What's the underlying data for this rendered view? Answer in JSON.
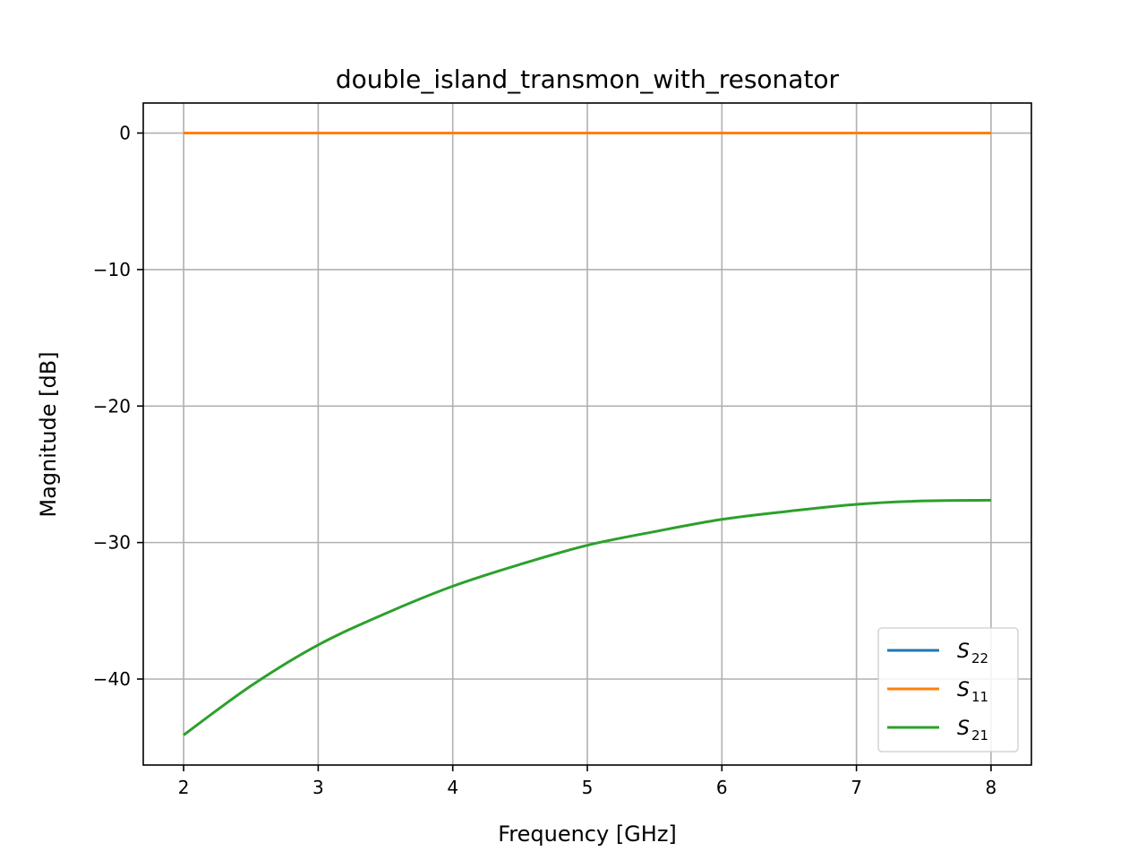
{
  "chart_data": {
    "type": "line",
    "title": "double_island_transmon_with_resonator",
    "xlabel": "Frequency [GHz]",
    "ylabel": "Magnitude [dB]",
    "xlim": [
      1.7,
      8.3
    ],
    "ylim": [
      -46.3,
      2.2
    ],
    "x_ticks": [
      2,
      3,
      4,
      5,
      6,
      7,
      8
    ],
    "x_tick_labels": [
      "2",
      "3",
      "4",
      "5",
      "6",
      "7",
      "8"
    ],
    "y_ticks": [
      0,
      -10,
      -20,
      -30,
      -40
    ],
    "y_tick_labels": [
      "0",
      "−10",
      "−20",
      "−30",
      "−40"
    ],
    "grid": true,
    "legend_position": "lower-right",
    "x": [
      2.0,
      2.5,
      3.0,
      3.5,
      4.0,
      4.5,
      5.0,
      5.5,
      6.0,
      6.5,
      7.0,
      7.5,
      8.0
    ],
    "series": [
      {
        "name": "S22",
        "label_base": "S",
        "label_sub": "22",
        "color": "#1f77b4",
        "values": [
          0,
          0,
          0,
          0,
          0,
          0,
          0,
          0,
          0,
          0,
          0,
          0,
          0
        ]
      },
      {
        "name": "S11",
        "label_base": "S",
        "label_sub": "11",
        "color": "#ff7f0e",
        "values": [
          0,
          0,
          0,
          0,
          0,
          0,
          0,
          0,
          0,
          0,
          0,
          0,
          0
        ]
      },
      {
        "name": "S21",
        "label_base": "S",
        "label_sub": "21",
        "color": "#2ca02c",
        "values": [
          -44.1,
          -40.5,
          -37.5,
          -35.2,
          -33.2,
          -31.6,
          -30.2,
          -29.2,
          -28.3,
          -27.7,
          -27.2,
          -26.95,
          -26.9
        ]
      }
    ]
  }
}
